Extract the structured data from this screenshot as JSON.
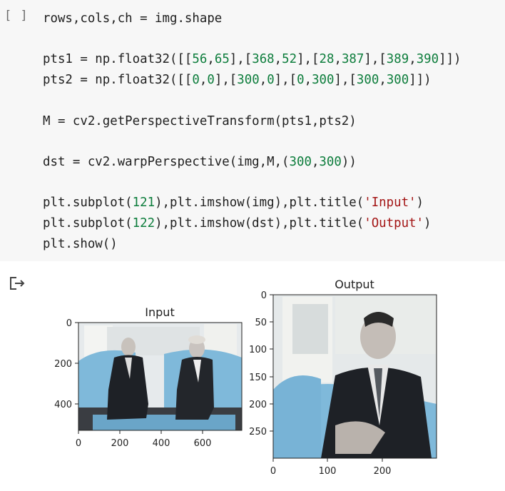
{
  "cell": {
    "run_button": "[ ]",
    "code_lines": [
      [
        {
          "t": "rows,cols,ch = img.shape"
        }
      ],
      [],
      [
        {
          "t": "pts1 = np.float32([[",
          "c": ""
        },
        {
          "t": "56",
          "c": "num"
        },
        {
          "t": ","
        },
        {
          "t": "65",
          "c": "num"
        },
        {
          "t": "],["
        },
        {
          "t": "368",
          "c": "num"
        },
        {
          "t": ","
        },
        {
          "t": "52",
          "c": "num"
        },
        {
          "t": "],["
        },
        {
          "t": "28",
          "c": "num"
        },
        {
          "t": ","
        },
        {
          "t": "387",
          "c": "num"
        },
        {
          "t": "],["
        },
        {
          "t": "389",
          "c": "num"
        },
        {
          "t": ","
        },
        {
          "t": "390",
          "c": "num"
        },
        {
          "t": "]])"
        }
      ],
      [
        {
          "t": "pts2 = np.float32([["
        },
        {
          "t": "0",
          "c": "num"
        },
        {
          "t": ","
        },
        {
          "t": "0",
          "c": "num"
        },
        {
          "t": "],["
        },
        {
          "t": "300",
          "c": "num"
        },
        {
          "t": ","
        },
        {
          "t": "0",
          "c": "num"
        },
        {
          "t": "],["
        },
        {
          "t": "0",
          "c": "num"
        },
        {
          "t": ","
        },
        {
          "t": "300",
          "c": "num"
        },
        {
          "t": "],["
        },
        {
          "t": "300",
          "c": "num"
        },
        {
          "t": ","
        },
        {
          "t": "300",
          "c": "num"
        },
        {
          "t": "]])"
        }
      ],
      [],
      [
        {
          "t": "M = cv2.getPerspectiveTransform(pts1,pts2)"
        }
      ],
      [],
      [
        {
          "t": "dst = cv2.warpPerspective(img,M,("
        },
        {
          "t": "300",
          "c": "num"
        },
        {
          "t": ","
        },
        {
          "t": "300",
          "c": "num"
        },
        {
          "t": "))"
        }
      ],
      [],
      [
        {
          "t": "plt.subplot("
        },
        {
          "t": "121",
          "c": "num"
        },
        {
          "t": "),plt.imshow(img),plt.title("
        },
        {
          "t": "'Input'",
          "c": "str"
        },
        {
          "t": ")"
        }
      ],
      [
        {
          "t": "plt.subplot("
        },
        {
          "t": "122",
          "c": "num"
        },
        {
          "t": "),plt.imshow(dst),plt.title("
        },
        {
          "t": "'Output'",
          "c": "str"
        },
        {
          "t": ")"
        }
      ],
      [
        {
          "t": "plt.show()"
        }
      ]
    ]
  },
  "output": {
    "icon": "output-redirect-icon",
    "colors": {
      "image_bg": "#e8ecee",
      "sofa": "#7fb9da",
      "suit": "#1e2126",
      "skin": "#c8c2bc",
      "axis": "#222222"
    },
    "plots": [
      {
        "title": "Input",
        "x_ticks": [
          "0",
          "200",
          "400",
          "600"
        ],
        "y_ticks": [
          "0",
          "200",
          "400"
        ]
      },
      {
        "title": "Output",
        "x_ticks": [
          "0",
          "100",
          "200"
        ],
        "y_ticks": [
          "0",
          "50",
          "100",
          "150",
          "200",
          "250"
        ]
      }
    ]
  }
}
